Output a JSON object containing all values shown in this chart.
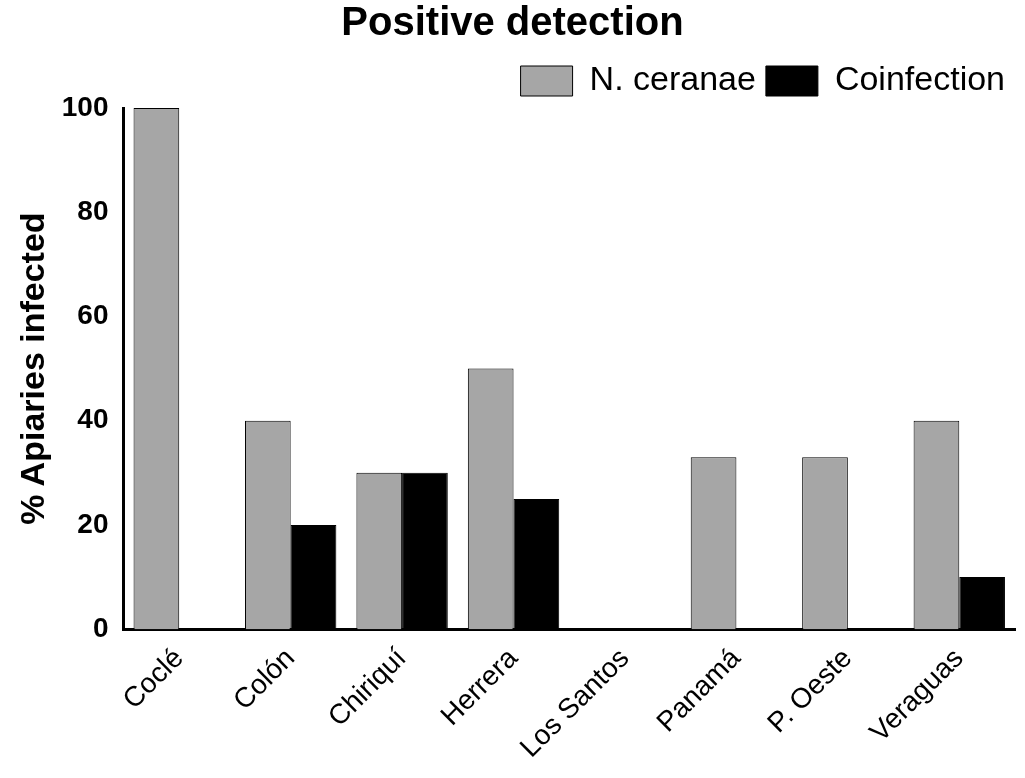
{
  "chart_data": {
    "type": "bar",
    "title": "Positive detection",
    "ylabel": "% Apiaries infected",
    "categories": [
      "Coclé",
      "Colón",
      "Chiriquí",
      "Herrera",
      "Los Santos",
      "Panamá",
      "P. Oeste",
      "Veraguas"
    ],
    "series": [
      {
        "name": "N. ceranae",
        "color": "#a6a6a6",
        "values": [
          100,
          40,
          30,
          50,
          0,
          33,
          33,
          40
        ]
      },
      {
        "name": "Coinfection",
        "color": "#000000",
        "values": [
          0,
          20,
          30,
          25,
          0,
          0,
          0,
          10
        ]
      }
    ],
    "ylim": [
      0,
      100
    ],
    "yticks": [
      0,
      20,
      40,
      60,
      80,
      100
    ],
    "grid": false,
    "legend": "top right"
  }
}
